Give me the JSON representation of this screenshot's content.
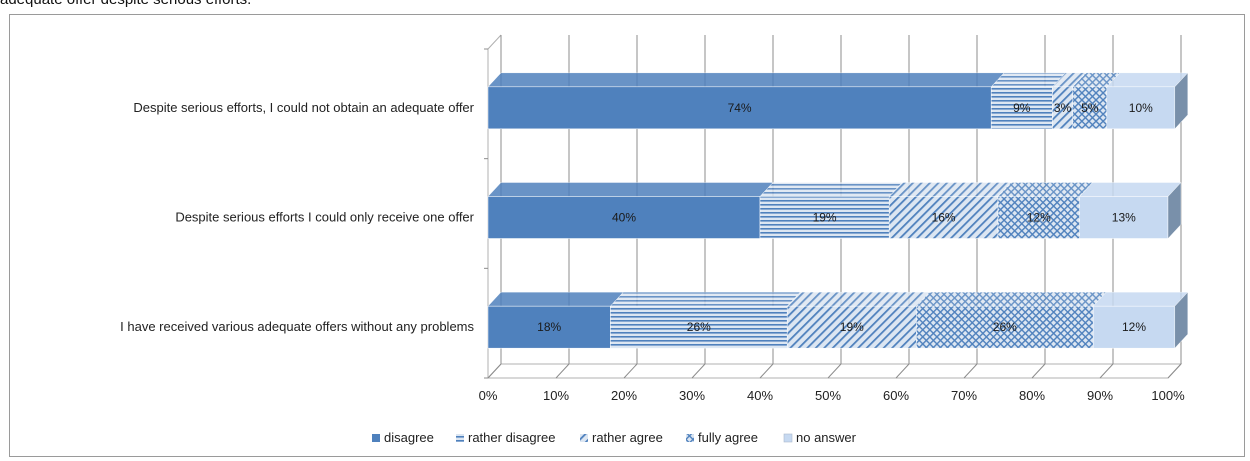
{
  "caption": "adequate offer despite serious efforts.",
  "chart_data": {
    "type": "bar",
    "orientation": "horizontal-stacked-100",
    "categories": [
      "Despite serious efforts, I could not obtain an adequate offer",
      "Despite serious efforts I could only receive one offer",
      "I have received various adequate offers without any problems"
    ],
    "series": [
      {
        "name": "disagree",
        "values": [
          74,
          40,
          18
        ],
        "labels": [
          "74%",
          "40%",
          "18%"
        ],
        "color": "#4f81bd",
        "pattern": "solid"
      },
      {
        "name": "rather disagree",
        "values": [
          9,
          19,
          26
        ],
        "labels": [
          "9%",
          "19%",
          "26%"
        ],
        "color": "#4f81bd",
        "pattern": "horizontal-lines"
      },
      {
        "name": "rather agree",
        "values": [
          3,
          16,
          19
        ],
        "labels": [
          "3%",
          "16%",
          "19%"
        ],
        "color": "#4f81bd",
        "pattern": "diagonal-lines"
      },
      {
        "name": "fully agree",
        "values": [
          5,
          12,
          26
        ],
        "labels": [
          "5%",
          "12%",
          "26%"
        ],
        "color": "#4f81bd",
        "pattern": "crosshatch"
      },
      {
        "name": "no answer",
        "values": [
          10,
          13,
          12
        ],
        "labels": [
          "10%",
          "13%",
          "12%"
        ],
        "color": "#c6d9f1",
        "pattern": "solid"
      }
    ],
    "xlim": [
      0,
      100
    ],
    "xticks": [
      "0%",
      "10%",
      "20%",
      "30%",
      "40%",
      "50%",
      "60%",
      "70%",
      "80%",
      "90%",
      "100%"
    ],
    "grid": "vertical",
    "legend_position": "bottom",
    "style": "3d"
  }
}
